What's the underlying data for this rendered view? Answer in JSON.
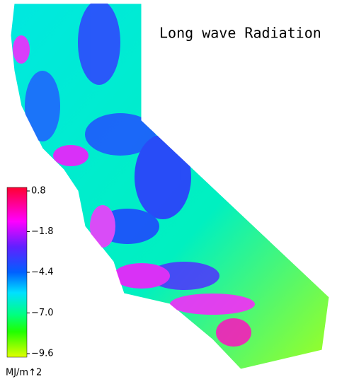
{
  "title": "Long wave Radiation",
  "colorbar": {
    "lim": [
      -9.6,
      0.8
    ],
    "ticks": [
      0.8,
      {
        "value": -1.8,
        "label": "−1.8"
      },
      {
        "value": -4.4,
        "label": "−4.4"
      },
      {
        "value": -7.0,
        "label": "−7.0"
      },
      {
        "value": -9.6,
        "label": "−9.6"
      }
    ],
    "unit": "MJ/m↑2"
  }
}
